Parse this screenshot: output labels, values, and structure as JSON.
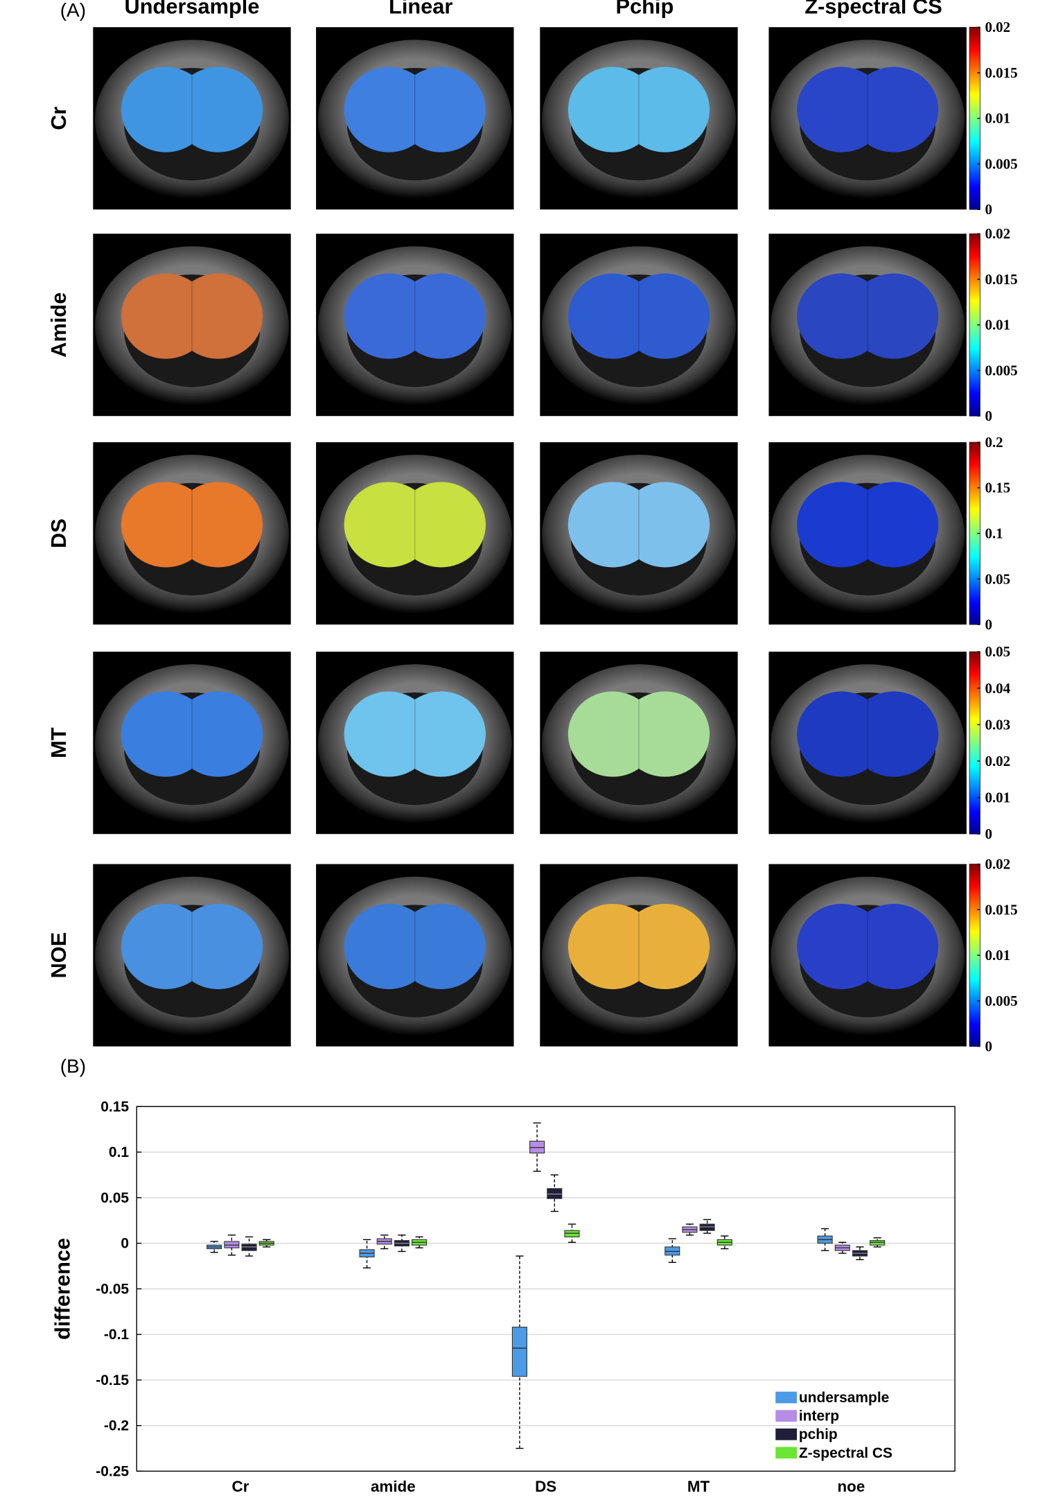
{
  "panel_a": {
    "label": "(A)",
    "columns": [
      "Undersample",
      "Linear",
      "Pchip",
      "Z-spectral CS"
    ],
    "rows": [
      {
        "label": "Cr",
        "colorbar": {
          "ylim": [
            0,
            0.02
          ],
          "yticks": [
            0,
            0.005,
            0.01,
            0.015,
            0.02
          ]
        }
      },
      {
        "label": "Amide",
        "colorbar": {
          "ylim": [
            0,
            0.02
          ],
          "yticks": [
            0,
            0.005,
            0.01,
            0.015,
            0.02
          ]
        }
      },
      {
        "label": "DS",
        "colorbar": {
          "ylim": [
            0,
            0.2
          ],
          "yticks": [
            0,
            0.05,
            0.1,
            0.15,
            0.2
          ]
        }
      },
      {
        "label": "MT",
        "colorbar": {
          "ylim": [
            0,
            0.05
          ],
          "yticks": [
            0,
            0.01,
            0.02,
            0.03,
            0.04,
            0.05
          ]
        }
      },
      {
        "label": "NOE",
        "colorbar": {
          "ylim": [
            0,
            0.02
          ],
          "yticks": [
            0,
            0.005,
            0.01,
            0.015,
            0.02
          ]
        }
      }
    ]
  },
  "chart_data": {
    "type": "box",
    "label": "(B)",
    "ylabel": "difference",
    "categories": [
      "Cr",
      "amide",
      "DS",
      "MT",
      "noe"
    ],
    "series": [
      {
        "name": "undersample",
        "color": "#4b9be6",
        "whislo": [
          -0.01,
          -0.027,
          -0.225,
          -0.021,
          -0.008
        ],
        "q1": [
          -0.006,
          -0.015,
          -0.146,
          -0.013,
          0.0
        ],
        "median": [
          -0.004,
          -0.011,
          -0.115,
          -0.009,
          0.004
        ],
        "q3": [
          -0.002,
          -0.007,
          -0.092,
          -0.004,
          0.008
        ],
        "whishi": [
          0.002,
          0.004,
          -0.014,
          0.005,
          0.016
        ]
      },
      {
        "name": "interp",
        "color": "#b58de6",
        "whislo": [
          -0.013,
          -0.006,
          0.079,
          0.009,
          -0.011
        ],
        "q1": [
          -0.005,
          -0.001,
          0.099,
          0.012,
          -0.008
        ],
        "median": [
          -0.002,
          0.002,
          0.105,
          0.015,
          -0.005
        ],
        "q3": [
          0.002,
          0.005,
          0.112,
          0.018,
          -0.002
        ],
        "whishi": [
          0.009,
          0.009,
          0.132,
          0.021,
          0.001
        ]
      },
      {
        "name": "pchip",
        "color": "#1f1d38",
        "whislo": [
          -0.014,
          -0.009,
          0.035,
          0.011,
          -0.018
        ],
        "q1": [
          -0.008,
          -0.003,
          0.049,
          0.014,
          -0.014
        ],
        "median": [
          -0.004,
          0.0,
          0.054,
          0.018,
          -0.011
        ],
        "q3": [
          -0.001,
          0.003,
          0.06,
          0.021,
          -0.008
        ],
        "whishi": [
          0.007,
          0.009,
          0.075,
          0.026,
          -0.004
        ]
      },
      {
        "name": "Z-spectral CS",
        "color": "#6ae634",
        "whislo": [
          -0.004,
          -0.005,
          0.001,
          -0.006,
          -0.004
        ],
        "q1": [
          -0.002,
          -0.002,
          0.007,
          -0.002,
          -0.002
        ],
        "median": [
          0.0,
          0.001,
          0.011,
          0.001,
          0.001
        ],
        "q3": [
          0.002,
          0.004,
          0.014,
          0.004,
          0.003
        ],
        "whishi": [
          0.004,
          0.007,
          0.021,
          0.008,
          0.006
        ]
      }
    ],
    "ylim": [
      -0.25,
      0.15
    ],
    "yticks": [
      0.15,
      0.1,
      0.05,
      0,
      -0.05,
      -0.1,
      -0.15,
      -0.2,
      -0.25
    ],
    "grid": true,
    "legend": "lower right"
  }
}
